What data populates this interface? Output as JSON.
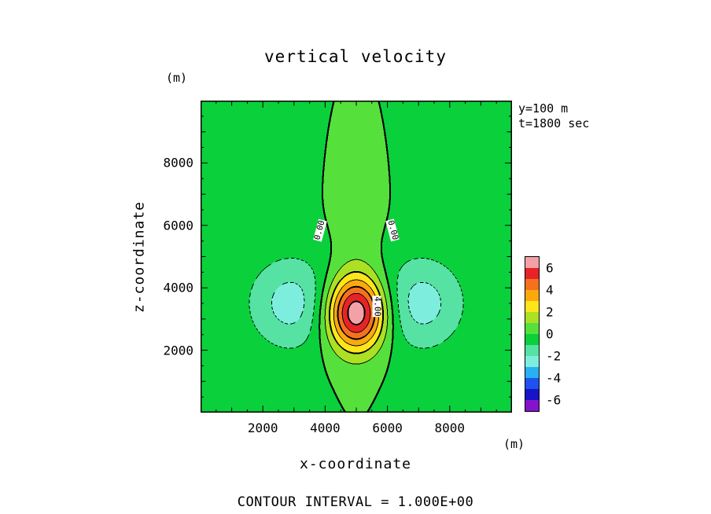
{
  "title": "vertical velocity",
  "caption": "CONTOUR INTERVAL = 1.000E+00",
  "annotations": {
    "slice": "y=100 m",
    "time": "t=1800 sec"
  },
  "axes": {
    "x": {
      "label": "x-coordinate",
      "units": "(m)",
      "min": 0,
      "max": 10000,
      "major_ticks": [
        2000,
        4000,
        6000,
        8000
      ],
      "minor_tick_step": 500
    },
    "z": {
      "label": "z-coordinate",
      "units": "(m)",
      "min": 0,
      "max": 10000,
      "major_ticks": [
        2000,
        4000,
        6000,
        8000
      ],
      "minor_tick_step": 500
    }
  },
  "colorbar": {
    "labels": [
      "6",
      "4",
      "2",
      "0",
      "-2",
      "-4",
      "-6"
    ]
  },
  "chart_data": {
    "type": "heatmap",
    "subtype": "filled-contour",
    "field_name": "vertical velocity",
    "title": "vertical velocity",
    "xlabel": "x-coordinate (m)",
    "ylabel": "z-coordinate (m)",
    "x_range": [
      0,
      10000
    ],
    "z_range": [
      0,
      10000
    ],
    "contour_interval": 1.0,
    "bands": [
      {
        "min": 6,
        "color": "#f2a2a6"
      },
      {
        "min": 5,
        "color": "#e62428"
      },
      {
        "min": 4,
        "color": "#f4721e"
      },
      {
        "min": 3,
        "color": "#fca90e"
      },
      {
        "min": 2,
        "color": "#fde51a"
      },
      {
        "min": 1,
        "color": "#abe024"
      },
      {
        "min": 0,
        "color": "#55e03c"
      },
      {
        "min": -1,
        "color": "#0ad03c"
      },
      {
        "min": -2,
        "color": "#55e2a2"
      },
      {
        "min": -3,
        "color": "#7deede"
      },
      {
        "min": -4,
        "color": "#28b0f2"
      },
      {
        "min": -5,
        "color": "#1d52ee"
      },
      {
        "min": -6,
        "color": "#1714c8"
      },
      {
        "min": -7,
        "color": "#8414cc"
      }
    ],
    "features": [
      {
        "name": "updraft-core",
        "x": 5000,
        "z": 3200,
        "peak": 6.9,
        "sigma_x": 680,
        "sigma_z": 830
      },
      {
        "name": "left-downdraft",
        "x": 2950,
        "z": 3500,
        "peak": -2.4,
        "sigma_x": 1000,
        "sigma_z": 1050
      },
      {
        "name": "right-downdraft",
        "x": 7050,
        "z": 3500,
        "peak": -2.4,
        "sigma_x": 1000,
        "sigma_z": 1050
      },
      {
        "name": "upper-outflow-column",
        "x": 5000,
        "z": 5500,
        "peak": 0.5,
        "sigma_x": 600,
        "sigma_z": 3000
      },
      {
        "name": "background",
        "peak": -0.08
      }
    ],
    "contour_labels": [
      {
        "text": "0.00",
        "x": 3850,
        "z": 5850,
        "angle": -75
      },
      {
        "text": "0.00",
        "x": 6150,
        "z": 5850,
        "angle": 75
      },
      {
        "text": "4.00",
        "x": 5660,
        "z": 3400,
        "angle": 90
      }
    ],
    "line_styles": {
      "zero": "thick-solid",
      "positive": "thin-solid",
      "negative": "dashed"
    }
  }
}
